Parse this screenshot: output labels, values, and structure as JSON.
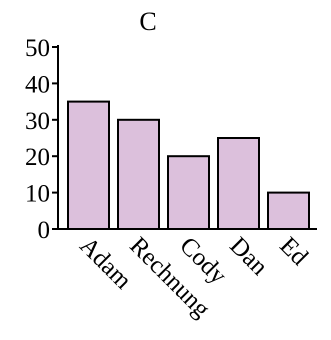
{
  "chart_data": {
    "type": "bar",
    "title": "C",
    "xlabel": "",
    "ylabel": "",
    "categories": [
      "Adam",
      "Rechnung",
      "Cody",
      "Dan",
      "Ed"
    ],
    "values": [
      35,
      30,
      20,
      25,
      10
    ],
    "ylim": [
      0,
      50
    ],
    "yticks": [
      "0",
      "10",
      "20",
      "30",
      "40",
      "50"
    ],
    "grid": false,
    "legend": "none",
    "colors": {
      "bar_fill": "#dcc0dc",
      "bar_stroke": "#000000",
      "axis": "#000000",
      "background": "#ffffff"
    }
  }
}
